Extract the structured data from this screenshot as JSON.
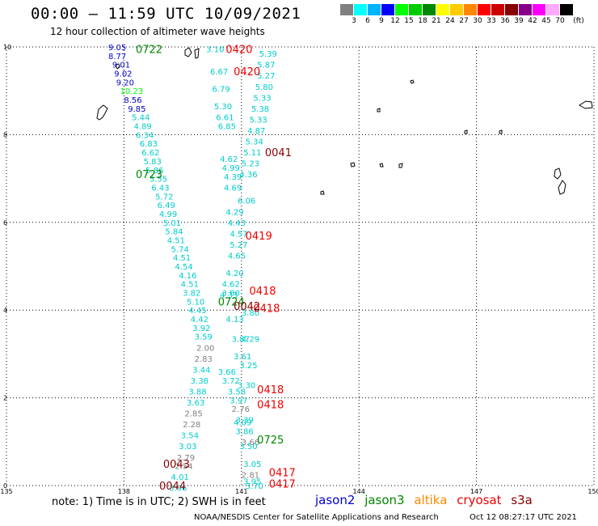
{
  "title": "00:00 – 11:59 UTC 10/09/2021",
  "subtitle": "12 hour collection of altimeter wave heights",
  "colorbar": {
    "unit": "(ft)",
    "labels": [
      "3",
      "6",
      "9",
      "12",
      "15",
      "18",
      "21",
      "24",
      "27",
      "30",
      "33",
      "36",
      "39",
      "42",
      "45",
      "70"
    ],
    "colors": [
      "#808080",
      "#00ffff",
      "#00b4ff",
      "#0000ff",
      "#00ff00",
      "#00cc00",
      "#008800",
      "#ffff00",
      "#ffcc00",
      "#ff8800",
      "#ff0000",
      "#cc0000",
      "#880000",
      "#880088",
      "#ff00ff",
      "#ffaaff",
      "#000000"
    ]
  },
  "axes": {
    "lon_ticks": [
      "135",
      "138",
      "141",
      "144",
      "147",
      "150"
    ],
    "lat_ticks": [
      "0",
      "2",
      "4",
      "6",
      "8",
      "10"
    ]
  },
  "legend": {
    "jason2": {
      "label": "jason2",
      "color": "#0000cc"
    },
    "jason3": {
      "label": "jason3",
      "color": "#008800"
    },
    "altika": {
      "label": "altika",
      "color": "#ff8800"
    },
    "cryosat": {
      "label": "cryosat",
      "color": "#ee0000"
    },
    "s3a": {
      "label": "s3a",
      "color": "#880000"
    }
  },
  "note": "note: 1) Time is in UTC; 2) SWH is in feet",
  "credit": "NOAA/NESDIS Center for Satellite Applications and Research",
  "timestamp": "Oct 12 08:27:17 UTC 2021",
  "track_times": [
    {
      "text": "0722",
      "color": "#008800",
      "lon": 138.3,
      "lat": 9.95
    },
    {
      "text": "0723",
      "color": "#008800",
      "lon": 138.3,
      "lat": 7.1
    },
    {
      "text": "0724",
      "color": "#008800",
      "lon": 140.4,
      "lat": 4.2
    },
    {
      "text": "0725",
      "color": "#008800",
      "lon": 141.4,
      "lat": 1.05
    },
    {
      "text": "0420",
      "color": "#ee0000",
      "lon": 140.6,
      "lat": 9.95
    },
    {
      "text": "0420",
      "color": "#ee0000",
      "lon": 140.8,
      "lat": 9.45
    },
    {
      "text": "0419",
      "color": "#ee0000",
      "lon": 141.1,
      "lat": 5.7
    },
    {
      "text": "0418",
      "color": "#ee0000",
      "lon": 141.2,
      "lat": 4.45
    },
    {
      "text": "0418",
      "color": "#ee0000",
      "lon": 141.3,
      "lat": 4.05
    },
    {
      "text": "0418",
      "color": "#ee0000",
      "lon": 141.4,
      "lat": 2.2
    },
    {
      "text": "0418",
      "color": "#ee0000",
      "lon": 141.4,
      "lat": 1.85
    },
    {
      "text": "0417",
      "color": "#ee0000",
      "lon": 141.7,
      "lat": 0.3
    },
    {
      "text": "0417",
      "color": "#ee0000",
      "lon": 141.7,
      "lat": 0.05
    },
    {
      "text": "0041",
      "color": "#880000",
      "lon": 141.6,
      "lat": 7.6
    },
    {
      "text": "0042",
      "color": "#880000",
      "lon": 140.8,
      "lat": 4.1
    },
    {
      "text": "0043",
      "color": "#880000",
      "lon": 139.0,
      "lat": 0.5
    },
    {
      "text": "0044",
      "color": "#880000",
      "lon": 138.9,
      "lat": 0.0
    }
  ],
  "swh_obs": [
    {
      "v": "9.05",
      "c": "#0000cc",
      "lon": 137.6,
      "lat": 10.0
    },
    {
      "v": "8.77",
      "c": "#0000cc",
      "lon": 137.6,
      "lat": 9.8
    },
    {
      "v": "9.01",
      "c": "#0000cc",
      "lon": 137.7,
      "lat": 9.6
    },
    {
      "v": "9.02",
      "c": "#0000cc",
      "lon": 137.75,
      "lat": 9.4
    },
    {
      "v": "9.20",
      "c": "#0000cc",
      "lon": 137.8,
      "lat": 9.2
    },
    {
      "v": "10.23",
      "c": "#00ff00",
      "lon": 137.9,
      "lat": 9.0
    },
    {
      "v": "8.56",
      "c": "#0000cc",
      "lon": 138.0,
      "lat": 8.8
    },
    {
      "v": "9.85",
      "c": "#0000cc",
      "lon": 138.1,
      "lat": 8.6
    },
    {
      "v": "5.44",
      "c": "#00cccc",
      "lon": 138.2,
      "lat": 8.4
    },
    {
      "v": "4.89",
      "c": "#00cccc",
      "lon": 138.25,
      "lat": 8.2
    },
    {
      "v": "6.34",
      "c": "#00cccc",
      "lon": 138.3,
      "lat": 8.0
    },
    {
      "v": "6.83",
      "c": "#00cccc",
      "lon": 138.4,
      "lat": 7.8
    },
    {
      "v": "6.62",
      "c": "#00cccc",
      "lon": 138.45,
      "lat": 7.6
    },
    {
      "v": "5.83",
      "c": "#00cccc",
      "lon": 138.5,
      "lat": 7.4
    },
    {
      "v": "5.86",
      "c": "#00cccc",
      "lon": 138.55,
      "lat": 7.2
    },
    {
      "v": "5.55",
      "c": "#00cccc",
      "lon": 138.65,
      "lat": 7.0
    },
    {
      "v": "6.43",
      "c": "#00cccc",
      "lon": 138.7,
      "lat": 6.8
    },
    {
      "v": "5.72",
      "c": "#00cccc",
      "lon": 138.8,
      "lat": 6.6
    },
    {
      "v": "6.49",
      "c": "#00cccc",
      "lon": 138.85,
      "lat": 6.4
    },
    {
      "v": "4.99",
      "c": "#00cccc",
      "lon": 138.9,
      "lat": 6.2
    },
    {
      "v": "5.01",
      "c": "#00cccc",
      "lon": 139.0,
      "lat": 6.0
    },
    {
      "v": "5.84",
      "c": "#00cccc",
      "lon": 139.05,
      "lat": 5.8
    },
    {
      "v": "4.51",
      "c": "#00cccc",
      "lon": 139.1,
      "lat": 5.6
    },
    {
      "v": "5.74",
      "c": "#00cccc",
      "lon": 139.2,
      "lat": 5.4
    },
    {
      "v": "4.51",
      "c": "#00cccc",
      "lon": 139.25,
      "lat": 5.2
    },
    {
      "v": "4.54",
      "c": "#00cccc",
      "lon": 139.3,
      "lat": 5.0
    },
    {
      "v": "4.16",
      "c": "#00cccc",
      "lon": 139.4,
      "lat": 4.8
    },
    {
      "v": "4.51",
      "c": "#00cccc",
      "lon": 139.45,
      "lat": 4.6
    },
    {
      "v": "3.82",
      "c": "#00cccc",
      "lon": 139.5,
      "lat": 4.4
    },
    {
      "v": "5.10",
      "c": "#00cccc",
      "lon": 139.6,
      "lat": 4.2
    },
    {
      "v": "4.45",
      "c": "#00cccc",
      "lon": 139.65,
      "lat": 4.0
    },
    {
      "v": "4.42",
      "c": "#00cccc",
      "lon": 139.7,
      "lat": 3.8
    },
    {
      "v": "3.92",
      "c": "#00cccc",
      "lon": 139.75,
      "lat": 3.6
    },
    {
      "v": "3.59",
      "c": "#00cccc",
      "lon": 139.8,
      "lat": 3.4
    },
    {
      "v": "2.00",
      "c": "#808080",
      "lon": 139.85,
      "lat": 3.15
    },
    {
      "v": "2.83",
      "c": "#808080",
      "lon": 139.8,
      "lat": 2.9
    },
    {
      "v": "3.44",
      "c": "#00cccc",
      "lon": 139.75,
      "lat": 2.65
    },
    {
      "v": "3.38",
      "c": "#00cccc",
      "lon": 139.7,
      "lat": 2.4
    },
    {
      "v": "3.88",
      "c": "#00cccc",
      "lon": 139.65,
      "lat": 2.15
    },
    {
      "v": "3.63",
      "c": "#00cccc",
      "lon": 139.6,
      "lat": 1.9
    },
    {
      "v": "2.85",
      "c": "#808080",
      "lon": 139.55,
      "lat": 1.65
    },
    {
      "v": "2.28",
      "c": "#808080",
      "lon": 139.5,
      "lat": 1.4
    },
    {
      "v": "3.54",
      "c": "#00cccc",
      "lon": 139.45,
      "lat": 1.15
    },
    {
      "v": "3.03",
      "c": "#00cccc",
      "lon": 139.4,
      "lat": 0.9
    },
    {
      "v": "2.79",
      "c": "#808080",
      "lon": 139.35,
      "lat": 0.65
    },
    {
      "v": "2.54",
      "c": "#808080",
      "lon": 139.3,
      "lat": 0.45
    },
    {
      "v": "4.01",
      "c": "#00cccc",
      "lon": 139.2,
      "lat": 0.2
    },
    {
      "v": "3.96",
      "c": "#00cccc",
      "lon": 139.15,
      "lat": -0.05
    },
    {
      "v": "3.10",
      "c": "#00cccc",
      "lon": 140.1,
      "lat": 9.95
    },
    {
      "v": "6.67",
      "c": "#00cccc",
      "lon": 140.2,
      "lat": 9.45
    },
    {
      "v": "6.79",
      "c": "#00cccc",
      "lon": 140.25,
      "lat": 9.05
    },
    {
      "v": "5.30",
      "c": "#00cccc",
      "lon": 140.3,
      "lat": 8.65
    },
    {
      "v": "6.61",
      "c": "#00cccc",
      "lon": 140.35,
      "lat": 8.4
    },
    {
      "v": "6.85",
      "c": "#00cccc",
      "lon": 140.4,
      "lat": 8.2
    },
    {
      "v": "4.62",
      "c": "#00cccc",
      "lon": 140.45,
      "lat": 7.45
    },
    {
      "v": "4.99",
      "c": "#00cccc",
      "lon": 140.5,
      "lat": 7.25
    },
    {
      "v": "4.39",
      "c": "#00cccc",
      "lon": 140.55,
      "lat": 7.05
    },
    {
      "v": "4.69",
      "c": "#00cccc",
      "lon": 140.55,
      "lat": 6.8
    },
    {
      "v": "4.29",
      "c": "#00cccc",
      "lon": 140.6,
      "lat": 6.25
    },
    {
      "v": "4.43",
      "c": "#00cccc",
      "lon": 140.65,
      "lat": 6.0
    },
    {
      "v": "4.57",
      "c": "#00cccc",
      "lon": 140.7,
      "lat": 5.75
    },
    {
      "v": "5.27",
      "c": "#00cccc",
      "lon": 140.7,
      "lat": 5.5
    },
    {
      "v": "4.65",
      "c": "#00cccc",
      "lon": 140.65,
      "lat": 5.25
    },
    {
      "v": "4.20",
      "c": "#00cccc",
      "lon": 140.6,
      "lat": 4.85
    },
    {
      "v": "4.62",
      "c": "#00cccc",
      "lon": 140.5,
      "lat": 4.6
    },
    {
      "v": "4.33",
      "c": "#00cccc",
      "lon": 140.45,
      "lat": 4.35
    },
    {
      "v": "3.80",
      "c": "#00cccc",
      "lon": 140.5,
      "lat": 4.4
    },
    {
      "v": "4.13",
      "c": "#00cccc",
      "lon": 140.6,
      "lat": 3.8
    },
    {
      "v": "3.87",
      "c": "#00cccc",
      "lon": 140.75,
      "lat": 3.35
    },
    {
      "v": "3.61",
      "c": "#00cccc",
      "lon": 140.8,
      "lat": 2.95
    },
    {
      "v": "3.66",
      "c": "#00cccc",
      "lon": 140.4,
      "lat": 2.6
    },
    {
      "v": "3.72",
      "c": "#00cccc",
      "lon": 140.5,
      "lat": 2.4
    },
    {
      "v": "3.58",
      "c": "#00cccc",
      "lon": 140.65,
      "lat": 2.15
    },
    {
      "v": "3.97",
      "c": "#00cccc",
      "lon": 140.7,
      "lat": 1.95
    },
    {
      "v": "2.76",
      "c": "#808080",
      "lon": 140.75,
      "lat": 1.75
    },
    {
      "v": "4.09",
      "c": "#00cccc",
      "lon": 140.8,
      "lat": 1.45
    },
    {
      "v": "3.86",
      "c": "#00cccc",
      "lon": 140.85,
      "lat": 1.25
    },
    {
      "v": "3.66",
      "c": "#808080",
      "lon": 141.0,
      "lat": 1.0
    },
    {
      "v": "3.05",
      "c": "#00cccc",
      "lon": 141.05,
      "lat": 0.5
    },
    {
      "v": "3.70",
      "c": "#00cccc",
      "lon": 141.1,
      "lat": 0.0
    },
    {
      "v": "5.39",
      "c": "#00cccc",
      "lon": 141.45,
      "lat": 9.85
    },
    {
      "v": "5.87",
      "c": "#00cccc",
      "lon": 141.4,
      "lat": 9.6
    },
    {
      "v": "5.27",
      "c": "#00cccc",
      "lon": 141.4,
      "lat": 9.35
    },
    {
      "v": "5.80",
      "c": "#00cccc",
      "lon": 141.35,
      "lat": 9.1
    },
    {
      "v": "5.33",
      "c": "#00cccc",
      "lon": 141.3,
      "lat": 8.85
    },
    {
      "v": "5.38",
      "c": "#00cccc",
      "lon": 141.25,
      "lat": 8.6
    },
    {
      "v": "5.33",
      "c": "#00cccc",
      "lon": 141.2,
      "lat": 8.35
    },
    {
      "v": "4.87",
      "c": "#00cccc",
      "lon": 141.15,
      "lat": 8.1
    },
    {
      "v": "5.34",
      "c": "#00cccc",
      "lon": 141.1,
      "lat": 7.85
    },
    {
      "v": "5.11",
      "c": "#00cccc",
      "lon": 141.05,
      "lat": 7.6
    },
    {
      "v": "5.23",
      "c": "#00cccc",
      "lon": 141.0,
      "lat": 7.35
    },
    {
      "v": "4.36",
      "c": "#00cccc",
      "lon": 140.95,
      "lat": 7.1
    },
    {
      "v": "6.06",
      "c": "#00cccc",
      "lon": 140.9,
      "lat": 6.5
    },
    {
      "v": "3.80",
      "c": "#00cccc",
      "lon": 141.0,
      "lat": 3.95
    },
    {
      "v": "4.29",
      "c": "#00cccc",
      "lon": 141.0,
      "lat": 3.35
    },
    {
      "v": "3.25",
      "c": "#00cccc",
      "lon": 140.95,
      "lat": 2.75
    },
    {
      "v": "3.30",
      "c": "#00cccc",
      "lon": 140.9,
      "lat": 2.3
    },
    {
      "v": "3.39",
      "c": "#00cccc",
      "lon": 140.85,
      "lat": 1.5
    },
    {
      "v": "3.50",
      "c": "#00cccc",
      "lon": 140.95,
      "lat": 0.9
    },
    {
      "v": "2.81",
      "c": "#808080",
      "lon": 141.0,
      "lat": 0.25
    },
    {
      "v": "3.95",
      "c": "#00cccc",
      "lon": 141.05,
      "lat": 0.1
    }
  ]
}
